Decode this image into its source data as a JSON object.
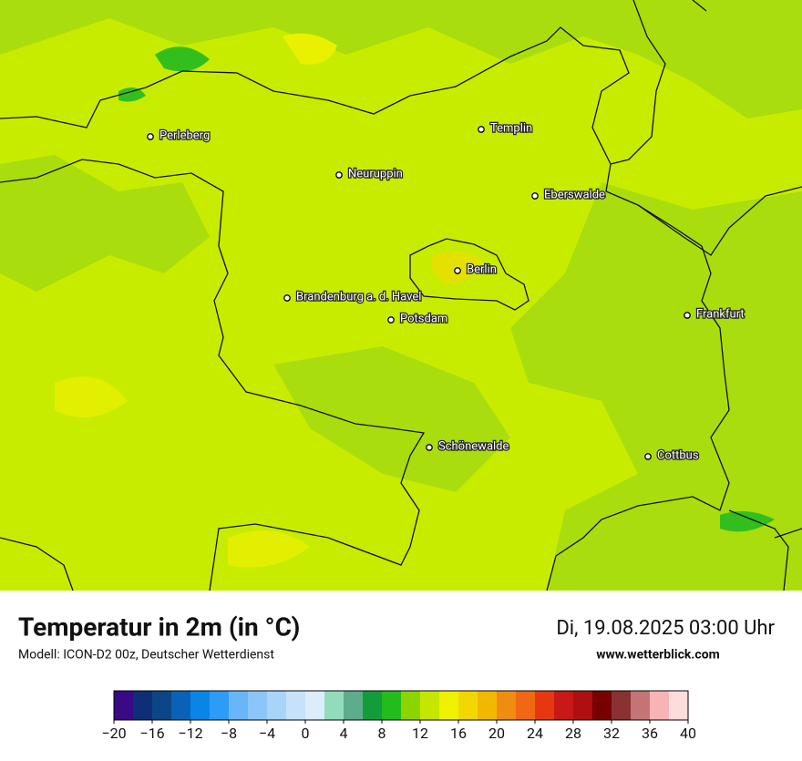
{
  "map": {
    "title": "Temperatur in 2m (in °C)",
    "subtitle": "Modell: ICON-D2 00z, Deutscher Wetterdienst",
    "datetime": "Di, 19.08.2025 03:00 Uhr",
    "website": "www.wetterblick.com",
    "cities": [
      "Perleberg",
      "Templin",
      "Neuruppin",
      "Eberswalde",
      "Berlin",
      "Brandenburg a. d. Havel",
      "Potsdam",
      "Frankfurt",
      "Schönewalde",
      "Cottbus"
    ]
  },
  "colorbar": {
    "lim": [
      -20,
      40
    ],
    "colors": [
      "#3a0a86",
      "#0e2f78",
      "#0d4686",
      "#0a62b8",
      "#0a84e6",
      "#2c9cf6",
      "#68b6f8",
      "#8cc6f8",
      "#a9d4fa",
      "#c6e2fa",
      "#dcecfc",
      "#92dcbc",
      "#5eac8c",
      "#149c3c",
      "#22bc1c",
      "#8cd400",
      "#c4e600",
      "#eef200",
      "#f2d800",
      "#f2b800",
      "#f08c10",
      "#f06814",
      "#e63810",
      "#c81818",
      "#ac1010",
      "#780000",
      "#8a3232",
      "#c47474",
      "#f8b4b4",
      "#ffdcdc"
    ],
    "ticks": [
      {
        "value": -20,
        "label": "−20"
      },
      {
        "value": -16,
        "label": "−16"
      },
      {
        "value": -12,
        "label": "−12"
      },
      {
        "value": -8,
        "label": "−8"
      },
      {
        "value": -4,
        "label": "−4"
      },
      0,
      4,
      8,
      12,
      16,
      20,
      24,
      28,
      32,
      36,
      40
    ]
  }
}
